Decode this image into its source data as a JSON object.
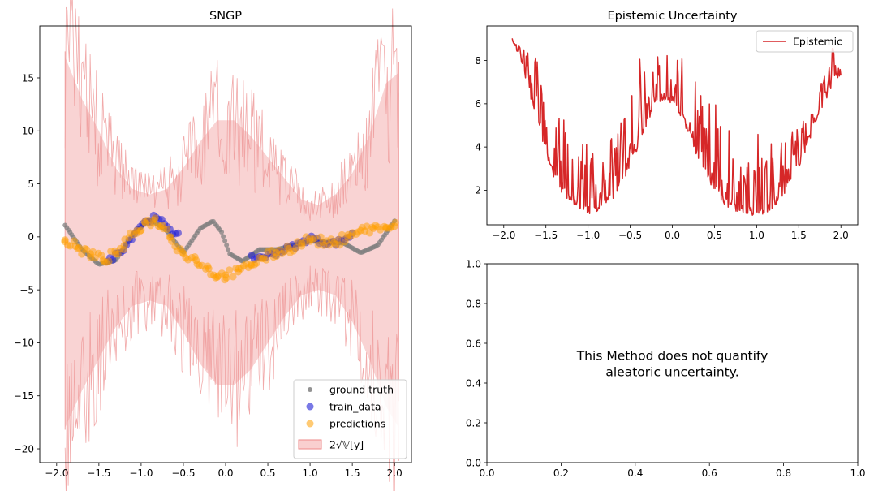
{
  "chart_data": [
    {
      "type": "scatter",
      "title": "SNGP",
      "xlabel": "",
      "ylabel": "",
      "xlim": [
        -2.2,
        2.2
      ],
      "ylim": [
        -21.3,
        19.9
      ],
      "xticks": [
        -2.0,
        -1.5,
        -1.0,
        -0.5,
        0.0,
        0.5,
        1.0,
        1.5,
        2.0
      ],
      "xtick_labels": [
        "−2.0",
        "−1.5",
        "−1.0",
        "−0.5",
        "0.0",
        "0.5",
        "1.0",
        "1.5",
        "2.0"
      ],
      "yticks": [
        -20,
        -15,
        -10,
        -5,
        0,
        5,
        10,
        15
      ],
      "ytick_labels": [
        "−20",
        "−15",
        "−10",
        "−5",
        "0",
        "5",
        "10",
        "15"
      ],
      "grid": false,
      "legend_position": "lower-right",
      "x_range": [
        -1.9,
        2.05
      ],
      "series": [
        {
          "name": "ground truth",
          "kind": "scatter",
          "color": "#808080",
          "x": [
            -1.9,
            -1.7,
            -1.5,
            -1.3,
            -1.1,
            -0.9,
            -0.7,
            -0.5,
            -0.3,
            -0.15,
            -0.05,
            0.05,
            0.2,
            0.4,
            0.6,
            0.8,
            1.0,
            1.2,
            1.4,
            1.6,
            1.8,
            2.0
          ],
          "y": [
            1.1,
            -1.2,
            -2.6,
            -2.2,
            0.2,
            1.7,
            0.6,
            -1.5,
            0.8,
            1.5,
            0.5,
            -1.6,
            -2.3,
            -1.2,
            -1.2,
            -0.8,
            -0.4,
            -0.5,
            -0.6,
            -1.5,
            -0.8,
            1.5
          ]
        },
        {
          "name": "train_data",
          "kind": "scatter",
          "color": "#1f1fd6",
          "x": [
            -1.4,
            -1.2,
            -1.0,
            -0.85,
            -0.7,
            -0.6,
            0.3,
            0.5,
            0.7,
            0.9,
            1.0,
            1.1,
            1.3,
            1.5
          ],
          "y": [
            -2.4,
            -1.0,
            1.2,
            1.8,
            1.2,
            0.2,
            -2.0,
            -1.8,
            -1.2,
            -0.6,
            0.0,
            -0.4,
            -0.6,
            0.2
          ]
        },
        {
          "name": "predictions",
          "kind": "scatter",
          "color": "#ff9f00",
          "x": [
            -1.9,
            -1.75,
            -1.6,
            -1.45,
            -1.3,
            -1.2,
            -1.05,
            -0.95,
            -0.85,
            -0.75,
            -0.65,
            -0.5,
            -0.35,
            -0.2,
            -0.1,
            0.0,
            0.15,
            0.3,
            0.45,
            0.6,
            0.75,
            0.9,
            1.0,
            1.15,
            1.3,
            1.45,
            1.6,
            1.75,
            1.9,
            2.0
          ],
          "y": [
            -0.3,
            -1.1,
            -1.6,
            -2.2,
            -1.6,
            -0.8,
            0.6,
            1.3,
            1.6,
            1.1,
            0.0,
            -1.6,
            -2.2,
            -3.0,
            -3.8,
            -3.6,
            -3.3,
            -2.6,
            -2.0,
            -1.5,
            -1.1,
            -0.6,
            -0.2,
            -0.5,
            -0.7,
            0.2,
            0.6,
            0.8,
            0.9,
            1.0
          ]
        },
        {
          "name": "2√𝕍[y]",
          "kind": "band",
          "color": "#f4a8a8",
          "x": [
            -1.9,
            -1.7,
            -1.5,
            -1.3,
            -1.1,
            -0.9,
            -0.7,
            -0.5,
            -0.3,
            -0.1,
            0.1,
            0.3,
            0.5,
            0.7,
            0.9,
            1.1,
            1.3,
            1.5,
            1.7,
            1.9,
            2.05
          ],
          "upper": [
            17.0,
            13.0,
            10.0,
            6.5,
            4.5,
            4.0,
            4.5,
            6.5,
            9.0,
            11.0,
            11.0,
            9.5,
            7.5,
            5.5,
            3.5,
            3.0,
            4.0,
            6.0,
            9.5,
            14.5,
            15.5
          ],
          "lower": [
            -18.0,
            -14.5,
            -11.5,
            -8.5,
            -6.5,
            -6.0,
            -6.5,
            -9.0,
            -12.0,
            -14.0,
            -14.0,
            -12.5,
            -10.0,
            -7.5,
            -5.5,
            -5.0,
            -5.5,
            -8.0,
            -11.5,
            -16.0,
            -18.0
          ]
        }
      ]
    },
    {
      "type": "line",
      "title": "Epistemic Uncertainty",
      "xlabel": "",
      "ylabel": "",
      "xlim": [
        -2.2,
        2.2
      ],
      "ylim": [
        0.4,
        9.6
      ],
      "xticks": [
        -2.0,
        -1.5,
        -1.0,
        -0.5,
        0.0,
        0.5,
        1.0,
        1.5,
        2.0
      ],
      "xtick_labels": [
        "−2.0",
        "−1.5",
        "−1.0",
        "−0.5",
        "0.0",
        "0.5",
        "1.0",
        "1.5",
        "2.0"
      ],
      "yticks": [
        2,
        4,
        6,
        8
      ],
      "ytick_labels": [
        "2",
        "4",
        "6",
        "8"
      ],
      "grid": false,
      "legend_position": "top-right",
      "series": [
        {
          "name": "Epistemic",
          "color": "#d62728",
          "x": [
            -1.9,
            -1.8,
            -1.7,
            -1.6,
            -1.5,
            -1.4,
            -1.3,
            -1.2,
            -1.1,
            -1.0,
            -0.9,
            -0.8,
            -0.7,
            -0.6,
            -0.5,
            -0.4,
            -0.3,
            -0.2,
            -0.1,
            0.0,
            0.1,
            0.2,
            0.3,
            0.4,
            0.5,
            0.6,
            0.7,
            0.8,
            0.9,
            1.0,
            1.1,
            1.2,
            1.3,
            1.4,
            1.5,
            1.6,
            1.7,
            1.8,
            1.9,
            2.0
          ],
          "y": [
            8.7,
            8.0,
            6.5,
            5.0,
            3.5,
            2.5,
            1.8,
            1.3,
            1.0,
            0.9,
            1.0,
            1.2,
            1.6,
            2.2,
            3.0,
            4.0,
            5.0,
            5.8,
            6.2,
            6.0,
            5.4,
            4.5,
            3.5,
            2.6,
            1.9,
            1.4,
            1.1,
            0.95,
            0.85,
            0.8,
            0.9,
            1.2,
            1.6,
            2.2,
            3.0,
            4.0,
            5.0,
            6.0,
            6.8,
            7.2
          ],
          "upper_envelope": [
            9.2,
            8.9,
            8.6,
            8.4,
            5.6,
            5.3,
            5.4,
            4.6,
            4.4,
            4.7,
            3.6,
            4.3,
            4.5,
            6.2,
            6.8,
            8.3,
            8.3,
            8.2,
            8.2,
            8.4,
            8.3,
            7.4,
            7.0,
            6.2,
            6.2,
            5.6,
            4.5,
            3.6,
            4.1,
            4.7,
            4.6,
            4.5,
            4.4,
            4.8,
            5.0,
            5.6,
            6.0,
            7.4,
            8.8,
            7.6
          ]
        }
      ]
    },
    {
      "type": "text",
      "title": "",
      "xlim": [
        0.0,
        1.0
      ],
      "ylim": [
        0.0,
        1.0
      ],
      "xticks": [
        0.0,
        0.2,
        0.4,
        0.6,
        0.8,
        1.0
      ],
      "xtick_labels": [
        "0.0",
        "0.2",
        "0.4",
        "0.6",
        "0.8",
        "1.0"
      ],
      "yticks": [
        0.0,
        0.2,
        0.4,
        0.6,
        0.8,
        1.0
      ],
      "ytick_labels": [
        "0.0",
        "0.2",
        "0.4",
        "0.6",
        "0.8",
        "1.0"
      ],
      "message_lines": [
        "This Method does not quantify",
        "aleatoric uncertainty."
      ]
    }
  ]
}
